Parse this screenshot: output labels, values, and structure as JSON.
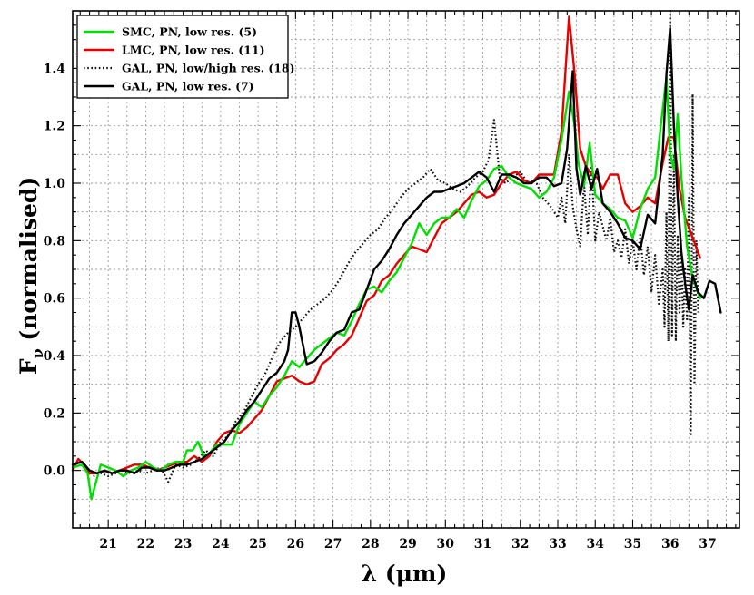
{
  "chart_data": {
    "type": "line",
    "xlabel_symbol": "λ",
    "xlabel_unit": "(μm)",
    "ylabel_main": "F",
    "ylabel_sub": "ν",
    "ylabel_rest": " (normalised)",
    "xlim": [
      20.05,
      37.85
    ],
    "ylim": [
      -0.2,
      1.6
    ],
    "x_ticks": [
      21,
      22,
      23,
      24,
      25,
      26,
      27,
      28,
      29,
      30,
      31,
      32,
      33,
      34,
      35,
      36,
      37
    ],
    "x_tick_labels": [
      "21",
      "22",
      "23",
      "24",
      "25",
      "26",
      "27",
      "28",
      "29",
      "30",
      "31",
      "32",
      "33",
      "34",
      "35",
      "36",
      "37"
    ],
    "y_ticks": [
      0.0,
      0.2,
      0.4,
      0.6,
      0.8,
      1.0,
      1.2,
      1.4
    ],
    "y_tick_labels": [
      "0.0",
      "0.2",
      "0.4",
      "0.6",
      "0.8",
      "1.0",
      "1.2",
      "1.4"
    ],
    "grid": true,
    "legend_position": "top-left",
    "series": [
      {
        "name": "SMC, PN, low res. (5)",
        "color": "#00e000",
        "dash": "solid",
        "x": [
          20.05,
          20.3,
          20.45,
          20.55,
          20.8,
          21.0,
          21.2,
          21.4,
          21.6,
          21.8,
          22.0,
          22.2,
          22.4,
          22.6,
          22.8,
          23.0,
          23.1,
          23.25,
          23.4,
          23.55,
          23.7,
          23.9,
          24.1,
          24.3,
          24.5,
          24.7,
          24.9,
          25.1,
          25.3,
          25.5,
          25.7,
          25.9,
          26.1,
          26.3,
          26.5,
          26.7,
          26.9,
          27.1,
          27.3,
          27.5,
          27.7,
          27.9,
          28.1,
          28.3,
          28.5,
          28.7,
          28.9,
          29.1,
          29.3,
          29.5,
          29.7,
          29.9,
          30.1,
          30.3,
          30.5,
          30.7,
          30.9,
          31.1,
          31.3,
          31.5,
          31.7,
          31.9,
          32.1,
          32.3,
          32.5,
          32.7,
          32.9,
          33.1,
          33.3,
          33.45,
          33.55,
          33.7,
          33.85,
          34.0,
          34.2,
          34.4,
          34.6,
          34.8,
          35.0,
          35.2,
          35.4,
          35.6,
          35.75,
          35.9,
          36.0,
          36.1,
          36.2,
          36.3,
          36.45,
          36.6,
          36.8
        ],
        "y": [
          0.01,
          0.02,
          -0.01,
          -0.1,
          0.02,
          0.01,
          0.0,
          -0.02,
          0.0,
          0.01,
          0.03,
          0.01,
          0.0,
          0.02,
          0.03,
          0.03,
          0.07,
          0.07,
          0.1,
          0.05,
          0.06,
          0.09,
          0.09,
          0.09,
          0.16,
          0.2,
          0.24,
          0.22,
          0.26,
          0.29,
          0.33,
          0.38,
          0.36,
          0.39,
          0.42,
          0.44,
          0.46,
          0.48,
          0.47,
          0.52,
          0.58,
          0.63,
          0.64,
          0.62,
          0.66,
          0.69,
          0.74,
          0.79,
          0.86,
          0.82,
          0.86,
          0.88,
          0.88,
          0.91,
          0.88,
          0.94,
          0.99,
          1.01,
          1.05,
          1.06,
          1.02,
          1.0,
          0.99,
          0.98,
          0.95,
          0.97,
          1.02,
          1.15,
          1.32,
          1.2,
          1.07,
          0.99,
          1.14,
          0.96,
          0.93,
          0.91,
          0.88,
          0.87,
          0.81,
          0.91,
          0.98,
          1.02,
          1.2,
          1.37,
          1.1,
          1.05,
          1.24,
          1.02,
          0.78,
          0.67,
          0.6
        ]
      },
      {
        "name": "LMC, PN, low res. (11)",
        "color": "#e80000",
        "dash": "solid",
        "x": [
          20.05,
          20.2,
          20.35,
          20.5,
          20.7,
          20.9,
          21.1,
          21.3,
          21.5,
          21.7,
          21.9,
          22.1,
          22.3,
          22.5,
          22.7,
          22.9,
          23.1,
          23.3,
          23.5,
          23.7,
          23.9,
          24.1,
          24.3,
          24.5,
          24.7,
          24.9,
          25.1,
          25.3,
          25.5,
          25.7,
          25.9,
          26.1,
          26.3,
          26.5,
          26.7,
          26.9,
          27.1,
          27.3,
          27.5,
          27.7,
          27.9,
          28.1,
          28.3,
          28.5,
          28.7,
          28.9,
          29.1,
          29.3,
          29.5,
          29.7,
          29.9,
          30.1,
          30.3,
          30.5,
          30.7,
          30.9,
          31.1,
          31.3,
          31.5,
          31.7,
          31.9,
          32.1,
          32.3,
          32.5,
          32.7,
          32.9,
          33.1,
          33.3,
          33.45,
          33.6,
          33.75,
          33.9,
          34.05,
          34.2,
          34.4,
          34.6,
          34.8,
          35.0,
          35.2,
          35.4,
          35.6,
          35.8,
          35.95,
          36.1,
          36.25,
          36.4,
          36.6,
          36.8
        ],
        "y": [
          0.0,
          0.04,
          0.02,
          -0.01,
          -0.01,
          0.0,
          -0.01,
          0.0,
          0.01,
          0.02,
          0.02,
          0.01,
          0.0,
          0.01,
          0.02,
          0.03,
          0.03,
          0.05,
          0.03,
          0.05,
          0.1,
          0.13,
          0.14,
          0.13,
          0.15,
          0.18,
          0.21,
          0.26,
          0.31,
          0.32,
          0.33,
          0.31,
          0.3,
          0.31,
          0.37,
          0.39,
          0.42,
          0.44,
          0.47,
          0.53,
          0.59,
          0.61,
          0.66,
          0.68,
          0.72,
          0.75,
          0.78,
          0.77,
          0.76,
          0.81,
          0.86,
          0.88,
          0.9,
          0.93,
          0.96,
          0.97,
          0.95,
          0.96,
          1.0,
          1.03,
          1.04,
          1.01,
          1.0,
          1.03,
          1.03,
          1.03,
          1.18,
          1.58,
          1.38,
          1.12,
          1.06,
          1.03,
          1.02,
          0.98,
          1.03,
          1.03,
          0.93,
          0.9,
          0.92,
          0.95,
          0.93,
          1.07,
          1.16,
          1.16,
          0.98,
          0.88,
          0.81,
          0.74
        ]
      },
      {
        "name": "GAL, PN, low/high res. (18)",
        "color": "#111111",
        "dash": "dotted",
        "x": [
          20.6,
          20.8,
          21.0,
          21.2,
          21.4,
          21.6,
          21.8,
          22.0,
          22.2,
          22.4,
          22.6,
          22.8,
          23.0,
          23.2,
          23.4,
          23.6,
          23.8,
          24.0,
          24.2,
          24.4,
          24.6,
          24.8,
          25.0,
          25.2,
          25.4,
          25.6,
          25.8,
          26.0,
          26.2,
          26.4,
          26.6,
          26.8,
          27.0,
          27.2,
          27.4,
          27.6,
          27.8,
          28.0,
          28.2,
          28.4,
          28.6,
          28.8,
          29.0,
          29.2,
          29.4,
          29.6,
          29.8,
          30.0,
          30.2,
          30.4,
          30.6,
          30.8,
          31.0,
          31.15,
          31.3,
          31.45,
          31.6,
          31.8,
          32.0,
          32.2,
          32.4,
          32.6,
          32.8,
          33.0,
          33.1,
          33.2,
          33.3,
          33.4,
          33.5,
          33.6,
          33.7,
          33.8,
          33.9,
          34.0,
          34.1,
          34.2,
          34.3,
          34.4,
          34.5,
          34.6,
          34.7,
          34.8,
          34.9,
          35.0,
          35.1,
          35.2,
          35.3,
          35.4,
          35.5,
          35.6,
          35.7,
          35.8,
          35.85,
          35.9,
          35.95,
          36.0,
          36.05,
          36.1,
          36.15,
          36.2,
          36.25,
          36.3,
          36.35,
          36.4,
          36.45,
          36.5,
          36.55,
          36.6,
          36.65,
          36.7,
          36.75
        ],
        "y": [
          -0.02,
          -0.01,
          -0.02,
          -0.01,
          0.0,
          -0.01,
          0.0,
          -0.01,
          0.0,
          0.01,
          -0.04,
          0.02,
          0.01,
          0.02,
          0.04,
          0.07,
          0.05,
          0.1,
          0.12,
          0.17,
          0.2,
          0.25,
          0.3,
          0.34,
          0.4,
          0.45,
          0.48,
          0.5,
          0.53,
          0.56,
          0.58,
          0.6,
          0.63,
          0.67,
          0.72,
          0.76,
          0.79,
          0.82,
          0.84,
          0.88,
          0.91,
          0.95,
          0.98,
          1.0,
          1.02,
          1.05,
          1.01,
          1.0,
          0.98,
          0.97,
          0.99,
          1.02,
          1.04,
          1.08,
          1.22,
          1.02,
          1.0,
          1.02,
          1.04,
          1.0,
          1.01,
          0.95,
          0.92,
          0.88,
          0.95,
          0.86,
          1.1,
          0.92,
          0.84,
          0.78,
          1.0,
          0.82,
          1.06,
          0.8,
          0.9,
          0.85,
          0.8,
          0.88,
          0.76,
          0.8,
          0.74,
          0.84,
          0.72,
          0.8,
          0.7,
          0.82,
          0.68,
          0.78,
          0.62,
          0.75,
          0.58,
          0.7,
          0.5,
          0.9,
          0.45,
          1.6,
          0.47,
          1.1,
          0.45,
          0.82,
          0.55,
          0.75,
          0.5,
          0.7,
          0.52,
          0.95,
          0.12,
          1.31,
          0.3,
          0.8,
          0.55
        ]
      },
      {
        "name": "GAL, PN, low res. (7)",
        "color": "#000000",
        "dash": "solid",
        "x": [
          20.05,
          20.3,
          20.5,
          20.7,
          20.9,
          21.1,
          21.3,
          21.5,
          21.7,
          21.9,
          22.1,
          22.3,
          22.5,
          22.7,
          22.9,
          23.1,
          23.3,
          23.5,
          23.7,
          23.9,
          24.1,
          24.3,
          24.5,
          24.7,
          24.9,
          25.1,
          25.3,
          25.5,
          25.7,
          25.8,
          25.9,
          26.0,
          26.1,
          26.3,
          26.5,
          26.7,
          26.9,
          27.1,
          27.3,
          27.5,
          27.7,
          27.9,
          28.1,
          28.3,
          28.5,
          28.7,
          28.9,
          29.1,
          29.3,
          29.5,
          29.7,
          29.9,
          30.1,
          30.3,
          30.5,
          30.7,
          30.9,
          31.1,
          31.3,
          31.5,
          31.7,
          31.9,
          32.1,
          32.3,
          32.5,
          32.7,
          32.9,
          33.1,
          33.25,
          33.4,
          33.5,
          33.6,
          33.75,
          33.9,
          34.05,
          34.2,
          34.4,
          34.6,
          34.8,
          35.0,
          35.2,
          35.4,
          35.6,
          35.8,
          35.9,
          36.0,
          36.1,
          36.2,
          36.3,
          36.4,
          36.5,
          36.6,
          36.75,
          36.9,
          37.05,
          37.2,
          37.35
        ],
        "y": [
          0.02,
          0.03,
          0.0,
          -0.01,
          0.0,
          -0.01,
          0.0,
          0.0,
          -0.01,
          0.01,
          0.01,
          0.0,
          0.0,
          0.01,
          0.02,
          0.02,
          0.03,
          0.04,
          0.06,
          0.08,
          0.1,
          0.14,
          0.17,
          0.21,
          0.24,
          0.28,
          0.32,
          0.34,
          0.38,
          0.42,
          0.55,
          0.55,
          0.5,
          0.37,
          0.38,
          0.41,
          0.45,
          0.48,
          0.49,
          0.55,
          0.56,
          0.63,
          0.7,
          0.73,
          0.77,
          0.82,
          0.86,
          0.89,
          0.92,
          0.95,
          0.97,
          0.97,
          0.98,
          0.99,
          1.0,
          1.02,
          1.04,
          1.02,
          0.97,
          1.03,
          1.03,
          1.02,
          1.0,
          1.0,
          1.02,
          1.02,
          0.99,
          1.0,
          1.12,
          1.39,
          1.05,
          0.96,
          1.06,
          0.98,
          1.05,
          0.93,
          0.9,
          0.86,
          0.81,
          0.8,
          0.77,
          0.89,
          0.86,
          1.1,
          1.38,
          1.54,
          1.2,
          0.95,
          0.76,
          0.65,
          0.56,
          0.68,
          0.62,
          0.6,
          0.66,
          0.65,
          0.55
        ]
      }
    ]
  }
}
